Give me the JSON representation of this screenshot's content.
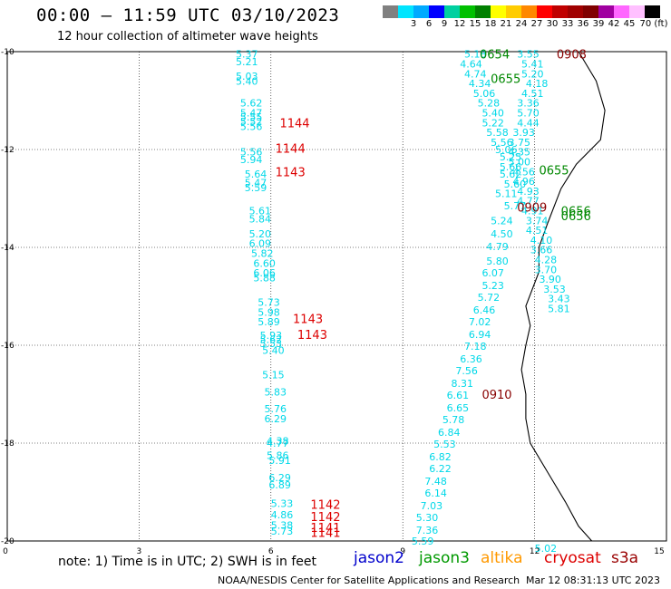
{
  "header": {
    "title": "00:00 – 11:59 UTC 03/10/2023",
    "subtitle": "12 hour collection of altimeter wave heights"
  },
  "colorbar": {
    "colors": [
      "#808080",
      "#00e5ff",
      "#00aaff",
      "#0000ff",
      "#00d0a0",
      "#00c000",
      "#008000",
      "#ffff00",
      "#ffcc00",
      "#ff8800",
      "#ff0000",
      "#c00000",
      "#a00000",
      "#800000",
      "#a000a0",
      "#ff66ff",
      "#ffc0ff",
      "#000000"
    ],
    "labels": [
      "3",
      "6",
      "9",
      "12",
      "15",
      "18",
      "21",
      "24",
      "27",
      "30",
      "33",
      "36",
      "39",
      "42",
      "45",
      "70 (ft)"
    ]
  },
  "axes": {
    "x_ticks": [
      "0",
      "3",
      "6",
      "9",
      "12",
      "15"
    ],
    "y_ticks": [
      "-10",
      "-12",
      "-14",
      "-16",
      "-18",
      "-20"
    ]
  },
  "legend": {
    "note": "note: 1) Time is in UTC; 2) SWH is in feet",
    "satellites": [
      {
        "name": "jason2",
        "color": "#0000cc"
      },
      {
        "name": "jason3",
        "color": "#009900"
      },
      {
        "name": "altika",
        "color": "#ff9900"
      },
      {
        "name": "cryosat",
        "color": "#dd0000"
      },
      {
        "name": "s3a",
        "color": "#990000"
      }
    ]
  },
  "footer": {
    "credit": "NOAA/NESDIS Center for Satellite Applications and Research",
    "stamp": "Mar 12 08:31:13 UTC 2023"
  },
  "map_data": {
    "lon_range": [
      0,
      15
    ],
    "lat_range": [
      -20,
      -10
    ],
    "coastline": [
      [
        13.0,
        -10
      ],
      [
        13.4,
        -10.6
      ],
      [
        13.6,
        -11.2
      ],
      [
        13.5,
        -11.8
      ],
      [
        12.95,
        -12.3
      ],
      [
        12.6,
        -12.8
      ],
      [
        12.3,
        -13.5
      ],
      [
        12.1,
        -14.0
      ],
      [
        12.1,
        -14.5
      ],
      [
        11.8,
        -15.2
      ],
      [
        11.9,
        -15.6
      ],
      [
        11.8,
        -16.0
      ],
      [
        11.7,
        -16.5
      ],
      [
        11.8,
        -17.0
      ],
      [
        11.8,
        -17.5
      ],
      [
        11.9,
        -18.0
      ],
      [
        12.3,
        -18.6
      ],
      [
        12.7,
        -19.2
      ],
      [
        13.0,
        -19.7
      ],
      [
        13.3,
        -20
      ]
    ],
    "wave_color": "#00d8e8",
    "track1": [
      [
        5.2,
        -10.05,
        "5.37"
      ],
      [
        5.2,
        -10.2,
        "5.21"
      ],
      [
        5.2,
        -10.5,
        "5.03"
      ],
      [
        5.2,
        -10.6,
        "5.40"
      ],
      [
        5.3,
        -11.05,
        "5.62"
      ],
      [
        5.3,
        -11.25,
        "5.47"
      ],
      [
        5.3,
        -11.33,
        "5.55"
      ],
      [
        5.3,
        -11.43,
        "5.52"
      ],
      [
        5.3,
        -11.53,
        "5.56"
      ],
      [
        5.3,
        -12.05,
        "5.56"
      ],
      [
        5.3,
        -12.2,
        "5.94"
      ],
      [
        5.4,
        -12.5,
        "5.64"
      ],
      [
        5.4,
        -12.68,
        "5.47"
      ],
      [
        5.4,
        -12.78,
        "5.59"
      ],
      [
        5.5,
        -13.25,
        "5.61"
      ],
      [
        5.5,
        -13.42,
        "5.84"
      ],
      [
        5.5,
        -13.72,
        "5.20"
      ],
      [
        5.5,
        -13.92,
        "6.09"
      ],
      [
        5.55,
        -14.12,
        "5.82"
      ],
      [
        5.6,
        -14.32,
        "6.60"
      ],
      [
        5.6,
        -14.52,
        "6.06"
      ],
      [
        5.6,
        -14.62,
        "5.88"
      ],
      [
        5.7,
        -15.12,
        "5.73"
      ],
      [
        5.7,
        -15.32,
        "5.98"
      ],
      [
        5.7,
        -15.52,
        "5.89"
      ],
      [
        5.75,
        -15.8,
        "5.93"
      ],
      [
        5.75,
        -15.88,
        "5.62"
      ],
      [
        5.75,
        -15.96,
        "5.53"
      ],
      [
        5.8,
        -16.1,
        "5.40"
      ],
      [
        5.8,
        -16.6,
        "5.15"
      ],
      [
        5.85,
        -16.95,
        "5.83"
      ],
      [
        5.85,
        -17.3,
        "5.76"
      ],
      [
        5.85,
        -17.5,
        "6.29"
      ],
      [
        5.9,
        -17.95,
        "4.38"
      ],
      [
        5.9,
        -18.0,
        "4.77"
      ],
      [
        5.9,
        -18.25,
        "5.86"
      ],
      [
        5.95,
        -18.35,
        "5.91"
      ],
      [
        5.95,
        -18.7,
        "6.29"
      ],
      [
        5.95,
        -18.85,
        "6.89"
      ],
      [
        6.0,
        -19.23,
        "5.33"
      ],
      [
        6.0,
        -19.46,
        "4.86"
      ],
      [
        6.0,
        -19.68,
        "5.38"
      ],
      [
        6.0,
        -19.8,
        "5.73"
      ]
    ],
    "track1_labels": [
      [
        6.2,
        -11.45,
        "1144",
        "#dd0000"
      ],
      [
        6.1,
        -11.97,
        "1144",
        "#dd0000"
      ],
      [
        6.1,
        -12.45,
        "1143",
        "#dd0000"
      ],
      [
        6.5,
        -15.45,
        "1143",
        "#dd0000"
      ],
      [
        6.6,
        -15.78,
        "1143",
        "#dd0000"
      ],
      [
        6.9,
        -19.25,
        "1142",
        "#dd0000"
      ],
      [
        6.9,
        -19.5,
        "1142",
        "#dd0000"
      ],
      [
        6.9,
        -19.72,
        "1141",
        "#dd0000"
      ],
      [
        6.9,
        -19.82,
        "1141",
        "#dd0000"
      ]
    ],
    "track2": [
      [
        10.4,
        -10.05,
        "5.18"
      ],
      [
        10.3,
        -10.25,
        "4.64"
      ],
      [
        10.4,
        -10.45,
        "4.74"
      ],
      [
        10.5,
        -10.65,
        "4.34"
      ],
      [
        10.6,
        -10.85,
        "5.06"
      ],
      [
        10.7,
        -11.05,
        "5.28"
      ],
      [
        10.8,
        -11.25,
        "5.40"
      ],
      [
        10.8,
        -11.45,
        "5.22"
      ],
      [
        10.9,
        -11.65,
        "5.58"
      ],
      [
        11.0,
        -11.85,
        "5.56"
      ],
      [
        11.1,
        -12.0,
        "5.06"
      ],
      [
        11.2,
        -12.15,
        "5.25"
      ],
      [
        11.2,
        -12.35,
        "5.66"
      ],
      [
        11.2,
        -12.5,
        "5.62"
      ],
      [
        11.3,
        -12.7,
        "5.60"
      ],
      [
        11.1,
        -12.9,
        "5.11"
      ],
      [
        11.3,
        -13.15,
        "5.77"
      ],
      [
        11.0,
        -13.45,
        "5.24"
      ],
      [
        11.0,
        -13.72,
        "4.50"
      ],
      [
        10.9,
        -13.98,
        "4.79"
      ],
      [
        10.9,
        -14.28,
        "5.80"
      ],
      [
        10.8,
        -14.52,
        "6.07"
      ],
      [
        10.8,
        -14.78,
        "5.23"
      ],
      [
        10.7,
        -15.02,
        "5.72"
      ],
      [
        10.6,
        -15.28,
        "6.46"
      ],
      [
        10.5,
        -15.52,
        "7.02"
      ],
      [
        10.5,
        -15.78,
        "6.94"
      ],
      [
        10.4,
        -16.02,
        "7.18"
      ],
      [
        10.3,
        -16.28,
        "6.36"
      ],
      [
        10.2,
        -16.52,
        "7.56"
      ],
      [
        10.1,
        -16.78,
        "8.31"
      ],
      [
        10.0,
        -17.02,
        "6.61"
      ],
      [
        10.0,
        -17.28,
        "6.65"
      ],
      [
        9.9,
        -17.52,
        "5.78"
      ],
      [
        9.8,
        -17.78,
        "6.84"
      ],
      [
        9.7,
        -18.02,
        "5.53"
      ],
      [
        9.6,
        -18.28,
        "6.82"
      ],
      [
        9.6,
        -18.52,
        "6.22"
      ],
      [
        9.5,
        -18.78,
        "7.48"
      ],
      [
        9.5,
        -19.02,
        "6.14"
      ],
      [
        9.4,
        -19.28,
        "7.03"
      ],
      [
        9.3,
        -19.52,
        "5.30"
      ],
      [
        9.3,
        -19.78,
        "7.36"
      ],
      [
        9.2,
        -20.0,
        "5.59"
      ]
    ],
    "track3": [
      [
        11.6,
        -10.05,
        "3.55"
      ],
      [
        11.7,
        -10.25,
        "5.41"
      ],
      [
        11.7,
        -10.45,
        "5.20"
      ],
      [
        11.8,
        -10.65,
        "4.18"
      ],
      [
        11.7,
        -10.85,
        "4.51"
      ],
      [
        11.6,
        -11.05,
        "3.36"
      ],
      [
        11.6,
        -11.25,
        "5.70"
      ],
      [
        11.6,
        -11.45,
        "4.44"
      ],
      [
        11.5,
        -11.65,
        "3.93"
      ],
      [
        11.4,
        -11.85,
        "3.75"
      ],
      [
        11.4,
        -12.05,
        "4.35"
      ],
      [
        11.4,
        -12.25,
        "5.00"
      ],
      [
        11.5,
        -12.45,
        "4.56"
      ],
      [
        11.5,
        -12.65,
        "4.96"
      ],
      [
        11.6,
        -12.85,
        "4.93"
      ],
      [
        11.6,
        -13.05,
        "4.77"
      ],
      [
        11.7,
        -13.25,
        "4.91"
      ],
      [
        11.8,
        -13.45,
        "3.74"
      ],
      [
        11.8,
        -13.65,
        "4.51"
      ],
      [
        11.9,
        -13.85,
        "4.10"
      ],
      [
        11.9,
        -14.05,
        "3.66"
      ],
      [
        12.0,
        -14.25,
        "4.28"
      ],
      [
        12.0,
        -14.45,
        "3.70"
      ],
      [
        12.1,
        -14.65,
        "3.90"
      ],
      [
        12.2,
        -14.85,
        "3.53"
      ],
      [
        12.3,
        -15.05,
        "3.43"
      ],
      [
        12.3,
        -15.25,
        "5.81"
      ],
      [
        12.0,
        -20.15,
        "5.02"
      ]
    ],
    "track3_labels": [
      [
        10.75,
        -10.05,
        "0654",
        "#008800"
      ],
      [
        11.0,
        -10.55,
        "0655",
        "#008800"
      ],
      [
        12.1,
        -12.42,
        "0655",
        "#008800"
      ],
      [
        12.6,
        -13.25,
        "0656",
        "#008800"
      ],
      [
        12.6,
        -13.35,
        "0656",
        "#008800"
      ],
      [
        12.5,
        -10.05,
        "0908",
        "#880000"
      ],
      [
        11.6,
        -13.18,
        "0909",
        "#880000"
      ],
      [
        10.8,
        -17.0,
        "0910",
        "#880000"
      ]
    ]
  }
}
